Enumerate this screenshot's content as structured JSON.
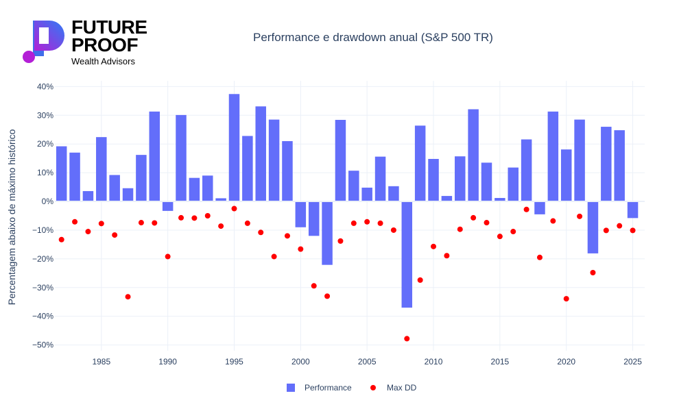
{
  "logo": {
    "line1": "FUTURE",
    "line2": "PROOF",
    "tagline": "Wealth Advisors",
    "colors": {
      "gradient_start": "#b31fd6",
      "gradient_end": "#2f7cf6"
    }
  },
  "chart_data": {
    "type": "bar",
    "title": "Performance e drawdown anual (S&P 500 TR)",
    "xlabel": "",
    "ylabel": "Percentagem abaixo de máximo histórico",
    "ylim": [
      -0.52,
      0.42
    ],
    "xlim": [
      1981.5,
      2025.9
    ],
    "y_ticks": [
      0.4,
      0.3,
      0.2,
      0.1,
      0,
      -0.1,
      -0.2,
      -0.3,
      -0.4,
      -0.5
    ],
    "y_tick_labels": [
      "40%",
      "30%",
      "20%",
      "10%",
      "0%",
      "−10%",
      "−20%",
      "−30%",
      "−40%",
      "−50%"
    ],
    "x_ticks": [
      1985,
      1990,
      1995,
      2000,
      2005,
      2010,
      2015,
      2020,
      2025
    ],
    "x_tick_labels": [
      "1985",
      "1990",
      "1995",
      "2000",
      "2005",
      "2010",
      "2015",
      "2020",
      "2025"
    ],
    "grid": true,
    "legend_position": "bottom-center",
    "x": [
      1982,
      1983,
      1984,
      1985,
      1986,
      1987,
      1988,
      1989,
      1990,
      1991,
      1992,
      1993,
      1994,
      1995,
      1996,
      1997,
      1998,
      1999,
      2000,
      2001,
      2002,
      2003,
      2004,
      2005,
      2006,
      2007,
      2008,
      2009,
      2010,
      2011,
      2012,
      2013,
      2014,
      2015,
      2016,
      2017,
      2018,
      2019,
      2020,
      2021,
      2022,
      2023,
      2024,
      2025
    ],
    "series": [
      {
        "name": "Performance",
        "type": "bar",
        "color": "#636efa",
        "values": [
          0.192,
          0.17,
          0.036,
          0.224,
          0.092,
          0.046,
          0.162,
          0.313,
          -0.033,
          0.301,
          0.082,
          0.09,
          0.011,
          0.374,
          0.228,
          0.331,
          0.285,
          0.21,
          -0.09,
          -0.12,
          -0.221,
          0.284,
          0.107,
          0.048,
          0.156,
          0.053,
          -0.37,
          0.264,
          0.148,
          0.019,
          0.157,
          0.321,
          0.135,
          0.012,
          0.118,
          0.216,
          -0.045,
          0.313,
          0.181,
          0.285,
          -0.181,
          0.26,
          0.248,
          -0.058
        ]
      },
      {
        "name": "Max DD",
        "type": "scatter",
        "color": "#ff0000",
        "values": [
          -0.133,
          -0.071,
          -0.105,
          -0.077,
          -0.117,
          -0.332,
          -0.074,
          -0.075,
          -0.192,
          -0.057,
          -0.058,
          -0.05,
          -0.086,
          -0.025,
          -0.076,
          -0.108,
          -0.192,
          -0.12,
          -0.166,
          -0.294,
          -0.33,
          -0.138,
          -0.076,
          -0.071,
          -0.076,
          -0.1,
          -0.478,
          -0.274,
          -0.157,
          -0.189,
          -0.097,
          -0.057,
          -0.074,
          -0.122,
          -0.105,
          -0.028,
          -0.195,
          -0.068,
          -0.339,
          -0.052,
          -0.248,
          -0.101,
          -0.085,
          -0.101
        ]
      }
    ]
  }
}
